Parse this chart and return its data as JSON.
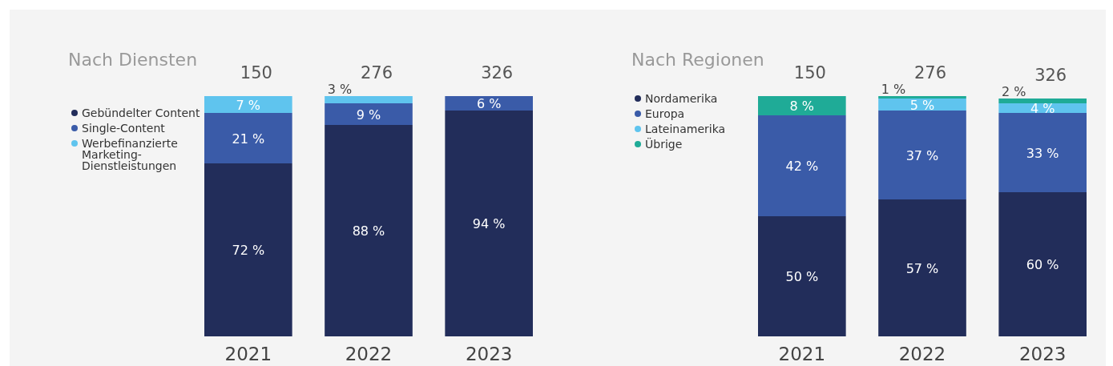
{
  "chart_data": [
    {
      "type": "bar",
      "title": "Nach Diensten",
      "stacked": true,
      "legend": "top left",
      "categories": [
        "2021",
        "2022",
        "2023"
      ],
      "annotations": [
        {
          "text": "150",
          "x": "2021",
          "y": 100
        },
        {
          "text": "276",
          "x": "2022",
          "y": 100
        },
        {
          "text": "326",
          "x": "2023",
          "y": 100
        }
      ],
      "series": [
        {
          "name": "Gebündelter Content",
          "color": "#222d5a",
          "values": [
            72,
            88,
            94
          ],
          "value_labels": [
            "72 %",
            "88 %",
            "94 %"
          ]
        },
        {
          "name": "Single-Content",
          "color": "#3a5ba8",
          "values": [
            21,
            9,
            6
          ],
          "value_labels": [
            "21 %",
            "9 %",
            "6 %"
          ]
        },
        {
          "name": "Werbefinanzierte Marketing-Dienstleistungen",
          "color": "#5fc4ee",
          "values": [
            7,
            3,
            null
          ],
          "value_labels": [
            "7 %",
            "3 %",
            null
          ]
        }
      ]
    },
    {
      "type": "bar",
      "title": "Nach Regionen",
      "stacked": true,
      "legend": "top left",
      "categories": [
        "2021",
        "2022",
        "2023"
      ],
      "annotations": [
        {
          "text": "150",
          "x": "2021",
          "y": 100
        },
        {
          "text": "276",
          "x": "2022",
          "y": 100
        },
        {
          "text": "326",
          "x": "2023",
          "y": 99
        }
      ],
      "series": [
        {
          "name": "Nordamerika",
          "color": "#222d5a",
          "values": [
            50,
            57,
            60
          ],
          "value_labels": [
            "50 %",
            "57 %",
            "60 %"
          ]
        },
        {
          "name": "Europa",
          "color": "#3a5ba8",
          "values": [
            42,
            37,
            33
          ],
          "value_labels": [
            "42 %",
            "37 %",
            "33 %"
          ]
        },
        {
          "name": "Lateinamerika",
          "color": "#5fc4ee",
          "values": [
            null,
            5,
            4
          ],
          "value_labels": [
            null,
            "5 %",
            "4 %"
          ]
        },
        {
          "name": "Übrige",
          "color": "#1fab97",
          "values": [
            8,
            1,
            2
          ],
          "value_labels": [
            "8 %",
            "1 %",
            "2 %"
          ]
        }
      ]
    }
  ]
}
